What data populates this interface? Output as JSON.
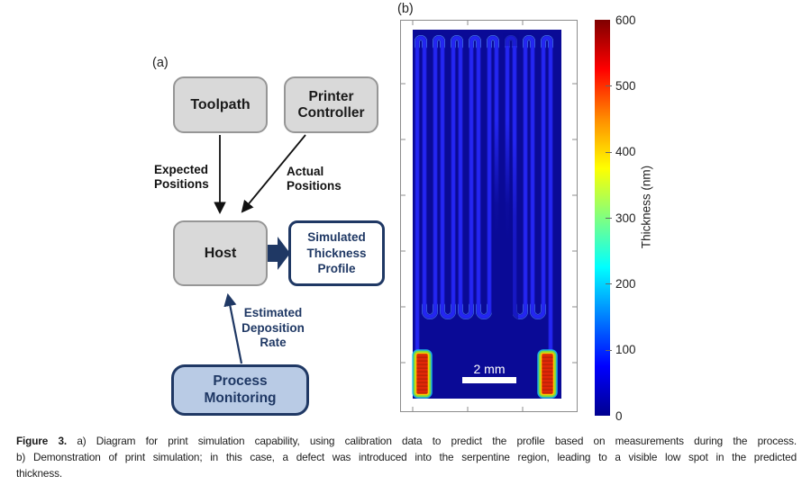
{
  "panel_a": {
    "label": "(a)",
    "boxes": {
      "toolpath": "Toolpath",
      "printer_controller": "Printer Controller",
      "host": "Host",
      "simulated_profile": "Simulated Thickness Profile",
      "process_monitoring": "Process Monitoring"
    },
    "arrow_labels": {
      "expected": "Expected Positions",
      "actual": "Actual Positions",
      "estimated": "Estimated Deposition Rate"
    },
    "colors": {
      "navy": "#1f3864",
      "box_fill": "#d9d9d9",
      "box_border": "#969696",
      "monitor_fill": "#b9cbe5"
    }
  },
  "panel_b": {
    "label": "(b)",
    "scale_bar_label": "2 mm",
    "heatmap": {
      "background": "#0a0a96",
      "trace_color": "#2426f2",
      "turn_highlight": "#5aa4f7",
      "pad_core": "#e02808",
      "turn_count": 8
    },
    "colorbar": {
      "title": "Thickness (nm)",
      "min": 0,
      "max": 600,
      "ticks": [
        0,
        100,
        200,
        300,
        400,
        500,
        600
      ]
    }
  },
  "chart_data": {
    "type": "heatmap",
    "title": "",
    "colorbar_label": "Thickness (nm)",
    "colorbar_range": [
      0,
      600
    ],
    "colorbar_ticks": [
      0,
      100,
      200,
      300,
      400,
      500,
      600
    ],
    "scale_bar": "2 mm",
    "legend_position": "right"
  },
  "caption": {
    "label": "Figure 3.",
    "lines": [
      "a) Diagram for print simulation capability, using calibration data to predict the profile based on measurements during the process.",
      "b) Demonstration of print simulation; in this case, a defect was introduced into the serpentine region, leading to a visible low spot in the predicted",
      "thickness."
    ]
  }
}
